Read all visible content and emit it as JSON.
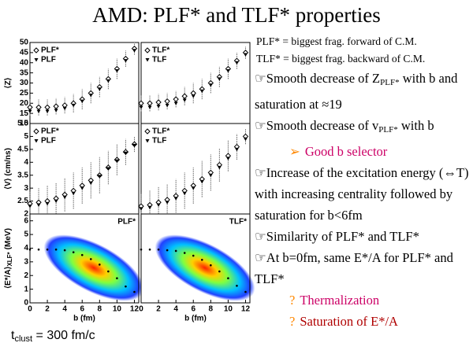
{
  "title": "AMD: PLF* and TLF* properties",
  "definitions": [
    "PLF* = biggest frag. forward of C.M.",
    "TLF* = biggest frag. backward of C.M."
  ],
  "bullet_symbol": "☞",
  "bullets": [
    {
      "parts": [
        "Smooth decrease of Z",
        "PLF*",
        " with b and saturation at ≈19"
      ]
    },
    {
      "parts": [
        "Smooth decrease of v",
        "PLF*",
        " with b"
      ]
    },
    {
      "marker": "➢",
      "text": "Good b selector"
    },
    {
      "parts": [
        "Increase of the excitation energy (⇔T) with increasing centrality followed by saturation for b<6fm"
      ]
    },
    {
      "parts": [
        "Similarity of PLF* and TLF*"
      ]
    },
    {
      "parts": [
        "At b=0fm, same E*/A  for PLF* and TLF*"
      ]
    },
    {
      "marker": "?",
      "text": "Thermalization"
    },
    {
      "marker": "?",
      "text": "Saturation of E*/A"
    }
  ],
  "footer": {
    "t": "t",
    "sub": "clust",
    "rest": " = 300 fm/c"
  },
  "chart_data": [
    {
      "type": "scatter",
      "ylabel": "⟨Z⟩",
      "legend": "upper left",
      "xlim": [
        0,
        12.5
      ],
      "ylim": [
        10,
        50
      ],
      "yticks": [
        10,
        15,
        20,
        25,
        30,
        35,
        40,
        45,
        50
      ],
      "x": [
        0,
        1,
        2,
        3,
        4,
        5,
        6,
        7,
        8,
        9,
        10,
        11,
        12
      ],
      "series": [
        {
          "name": "PLF*",
          "marker": "diamond",
          "color": "#000000",
          "values": [
            18,
            18,
            18,
            18.5,
            19,
            20,
            22,
            25,
            28,
            32,
            37,
            42,
            47
          ],
          "errors": [
            4,
            4,
            4,
            4,
            4,
            4.5,
            5,
            5,
            5,
            5,
            5,
            4,
            3
          ]
        },
        {
          "name": "PLF",
          "marker": "triangle",
          "color": "#000000",
          "values": [
            16,
            16,
            16,
            16.5,
            17.5,
            19,
            21,
            24,
            27,
            31,
            36,
            41,
            46
          ]
        }
      ]
    },
    {
      "type": "scatter",
      "legend": "upper left",
      "xlim": [
        0,
        12.5
      ],
      "ylim": [
        10,
        50
      ],
      "x": [
        0,
        1,
        2,
        3,
        4,
        5,
        6,
        7,
        8,
        9,
        10,
        11,
        12
      ],
      "series": [
        {
          "name": "TLF*",
          "marker": "diamond",
          "color": "#000000",
          "values": [
            20,
            20,
            20.5,
            21,
            22,
            23.5,
            25,
            27,
            30,
            33,
            37,
            41,
            45
          ],
          "errors": [
            4,
            4,
            4,
            4,
            4,
            4.5,
            5,
            5,
            5,
            5,
            5,
            4,
            3
          ]
        },
        {
          "name": "TLF",
          "marker": "triangle",
          "color": "#000000",
          "values": [
            18,
            18,
            18.5,
            19,
            20,
            21.5,
            23.5,
            26,
            29,
            32,
            36,
            40,
            44
          ]
        }
      ]
    },
    {
      "type": "scatter",
      "ylabel": "⟨V⟩ (cm/ns)",
      "legend": "upper left",
      "xlim": [
        0,
        12.5
      ],
      "ylim": [
        2,
        5.5
      ],
      "yticks": [
        2,
        2.5,
        3,
        3.5,
        4,
        4.5,
        5,
        5.5
      ],
      "x": [
        0,
        1,
        2,
        3,
        4,
        5,
        6,
        7,
        8,
        9,
        10,
        11,
        12
      ],
      "series": [
        {
          "name": "PLF*",
          "marker": "diamond",
          "color": "#000000",
          "values": [
            2.4,
            2.45,
            2.5,
            2.6,
            2.75,
            2.9,
            3.1,
            3.3,
            3.5,
            3.8,
            4.1,
            4.4,
            4.7
          ],
          "errors": [
            0.5,
            0.55,
            0.6,
            0.6,
            0.65,
            0.7,
            0.7,
            0.7,
            0.7,
            0.65,
            0.6,
            0.5,
            0.3
          ]
        },
        {
          "name": "PLF",
          "marker": "triangle",
          "color": "#000000",
          "values": [
            2.3,
            2.35,
            2.4,
            2.5,
            2.65,
            2.8,
            3.0,
            3.2,
            3.45,
            3.75,
            4.05,
            4.35,
            4.65
          ]
        }
      ]
    },
    {
      "type": "scatter",
      "legend": "upper left",
      "xlim": [
        0,
        12.5
      ],
      "ylim": [
        2,
        5.5
      ],
      "x": [
        0,
        1,
        2,
        3,
        4,
        5,
        6,
        7,
        8,
        9,
        10,
        11,
        12
      ],
      "series": [
        {
          "name": "TLF*",
          "marker": "diamond",
          "color": "#000000",
          "values": [
            2.3,
            2.35,
            2.45,
            2.55,
            2.7,
            2.9,
            3.1,
            3.35,
            3.6,
            3.9,
            4.25,
            4.6,
            5.0
          ],
          "errors": [
            0.5,
            0.55,
            0.6,
            0.6,
            0.65,
            0.7,
            0.7,
            0.7,
            0.7,
            0.65,
            0.6,
            0.5,
            0.3
          ]
        },
        {
          "name": "TLF",
          "marker": "triangle",
          "color": "#000000",
          "values": [
            2.2,
            2.25,
            2.35,
            2.45,
            2.6,
            2.8,
            3.0,
            3.25,
            3.5,
            3.8,
            4.15,
            4.5,
            4.9
          ]
        }
      ]
    },
    {
      "type": "density",
      "ylabel": "⟨E*/A⟩",
      "ylabel_sub": "XLF*",
      "ylabel_unit": "(MeV)",
      "xlabel": "b (fm)",
      "legend": "upper right",
      "xlim": [
        0,
        12.5
      ],
      "ylim": [
        0,
        6.5
      ],
      "xticks": [
        0,
        2,
        4,
        6,
        8,
        10,
        12
      ],
      "yticks": [
        0,
        1,
        2,
        3,
        4,
        5,
        6
      ],
      "x": [
        0,
        1,
        2,
        3,
        4,
        5,
        6,
        7,
        8,
        9,
        10,
        11,
        12
      ],
      "series": [
        {
          "name": "PLF*",
          "marker": "dot",
          "color": "#000000",
          "values": [
            3.9,
            3.9,
            3.9,
            3.9,
            3.85,
            3.7,
            3.5,
            3.2,
            2.8,
            2.3,
            1.8,
            1.2,
            0.8
          ]
        }
      ]
    },
    {
      "type": "density",
      "xlabel": "b (fm)",
      "legend": "upper right",
      "xlim": [
        0,
        12.5
      ],
      "ylim": [
        0,
        6.5
      ],
      "xticks": [
        0,
        2,
        4,
        6,
        8,
        10,
        12
      ],
      "x": [
        0,
        1,
        2,
        3,
        4,
        5,
        6,
        7,
        8,
        9,
        10,
        11,
        12
      ],
      "series": [
        {
          "name": "TLF*",
          "marker": "dot",
          "color": "#000000",
          "values": [
            3.9,
            3.9,
            3.9,
            3.85,
            3.8,
            3.65,
            3.45,
            3.15,
            2.75,
            2.3,
            1.8,
            1.25,
            0.8
          ]
        }
      ]
    }
  ]
}
